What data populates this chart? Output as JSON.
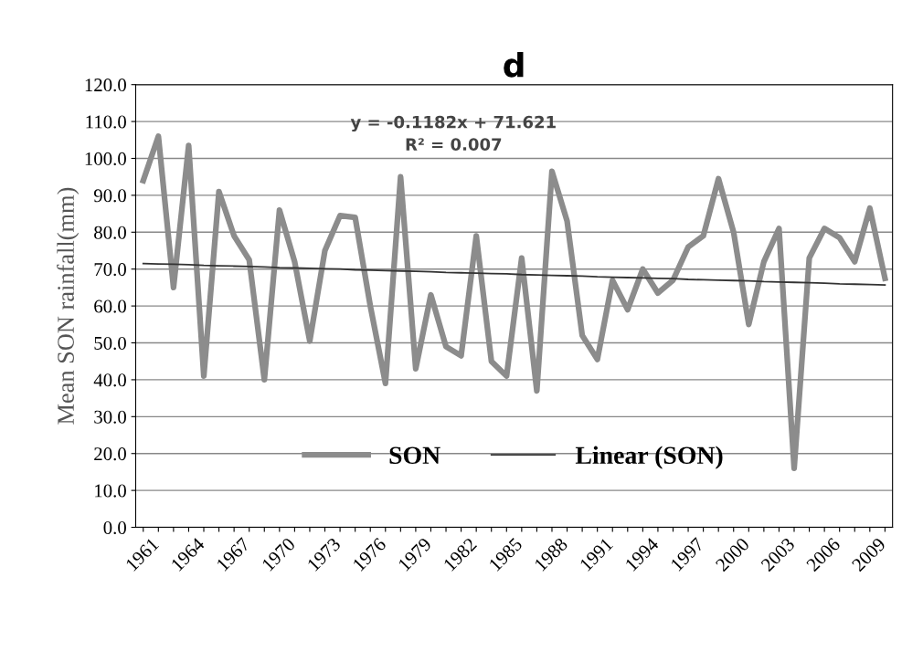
{
  "chart_data": {
    "type": "line",
    "title": "d",
    "ylabel": "Mean SON rainfall(mm)",
    "categories": [
      "1961",
      null,
      null,
      "1964",
      null,
      null,
      "1967",
      null,
      null,
      "1970",
      null,
      null,
      "1973",
      null,
      null,
      "1976",
      null,
      null,
      "1979",
      null,
      null,
      "1982",
      null,
      null,
      "1985",
      null,
      null,
      "1988",
      null,
      null,
      "1991",
      null,
      null,
      "1994",
      null,
      null,
      "1997",
      null,
      null,
      "2000",
      null,
      null,
      "2003",
      null,
      null,
      "2006",
      null,
      null,
      "2009",
      null
    ],
    "series": [
      {
        "name": "SON",
        "color": "#8c8c8c",
        "values": [
          94,
          106,
          65,
          103.5,
          41,
          91,
          79,
          72.5,
          40,
          86,
          72,
          50.5,
          75,
          84.5,
          84,
          60,
          39,
          95,
          43,
          63,
          49,
          46.5,
          79,
          45,
          41,
          73,
          37,
          96.5,
          83,
          52,
          45.5,
          67,
          59,
          70,
          63.5,
          67,
          76,
          79,
          94.5,
          80,
          55,
          72,
          81,
          16,
          73,
          81,
          78.5,
          72,
          86.5,
          67.5
        ]
      },
      {
        "name": "Linear (SON)",
        "color": "#333333",
        "values": [
          71.5,
          71.4,
          71.3,
          71.2,
          71.0,
          70.9,
          70.8,
          70.7,
          70.6,
          70.4,
          70.3,
          70.2,
          70.1,
          70.0,
          69.8,
          69.7,
          69.6,
          69.5,
          69.4,
          69.3,
          69.1,
          69.0,
          68.9,
          68.8,
          68.7,
          68.5,
          68.4,
          68.3,
          68.2,
          68.1,
          67.9,
          67.8,
          67.7,
          67.6,
          67.5,
          67.4,
          67.2,
          67.1,
          67.0,
          66.9,
          66.8,
          66.6,
          66.5,
          66.4,
          66.3,
          66.2,
          66.0,
          65.9,
          65.8,
          65.7
        ]
      }
    ],
    "ylim": [
      0,
      120
    ],
    "yticks": [
      {
        "value": 0,
        "label": "0.0"
      },
      {
        "value": 10,
        "label": "10.0"
      },
      {
        "value": 20,
        "label": "20.0"
      },
      {
        "value": 30,
        "label": "30.0"
      },
      {
        "value": 40,
        "label": "40.0"
      },
      {
        "value": 50,
        "label": "50.0"
      },
      {
        "value": 60,
        "label": "60.0"
      },
      {
        "value": 70,
        "label": "70.0"
      },
      {
        "value": 80,
        "label": "80.0"
      },
      {
        "value": 90,
        "label": "90.0"
      },
      {
        "value": 100,
        "label": "100.0"
      },
      {
        "value": 110,
        "label": "110.0"
      },
      {
        "value": 120,
        "label": "120.0"
      }
    ],
    "annotations": [
      "y = -0.1182x + 71.621\nR² = 0.007"
    ],
    "grid": "y",
    "legend": "bottom",
    "marker": "none",
    "line_style": "solid"
  }
}
